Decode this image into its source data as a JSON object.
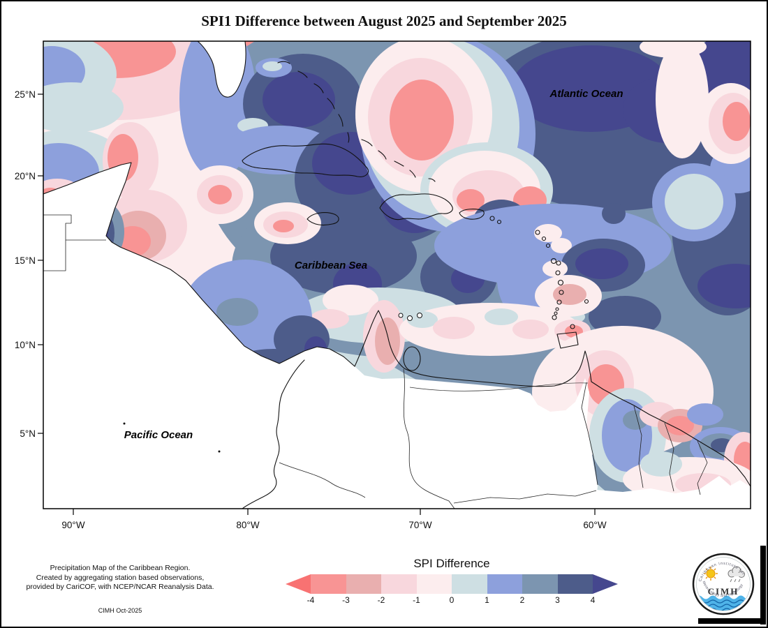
{
  "title": "SPI1 Difference between August 2025 and September 2025",
  "map": {
    "labels": {
      "atlantic": "Atlantic Ocean",
      "caribbean": "Caribbean Sea",
      "pacific": "Pacific Ocean"
    },
    "axes": {
      "lat_labels": [
        "25°N",
        "20°N",
        "15°N",
        "10°N",
        "5°N"
      ],
      "lon_labels": [
        "90°W",
        "80°W",
        "70°W",
        "60°W"
      ]
    }
  },
  "legend": {
    "title": "SPI Difference",
    "tick_labels": [
      "-4",
      "-3",
      "-2",
      "-1",
      "0",
      "1",
      "2",
      "3",
      "4"
    ],
    "band_colors": [
      "#F89494",
      "#E9AFAF",
      "#F8D7DD",
      "#FCEDEE",
      "#CEDFE3",
      "#8DA0DC",
      "#7C95B0",
      "#4D5C8A"
    ],
    "arrow_left_color": "#F87272",
    "arrow_right_color": "#45478E"
  },
  "footer": {
    "credit_lines": [
      "Precipitation Map of the Caribbean Region.",
      "Created by aggregating station based observations,",
      "provided by CariCOF, with NCEP/NCAR Reanalysis Data."
    ],
    "stamp": "CIMH Oct-2025"
  },
  "logo": {
    "top_text": "Caribbean Institute for",
    "bottom_text": "Meteorology and Hydrology",
    "acronym": "CIMH"
  }
}
